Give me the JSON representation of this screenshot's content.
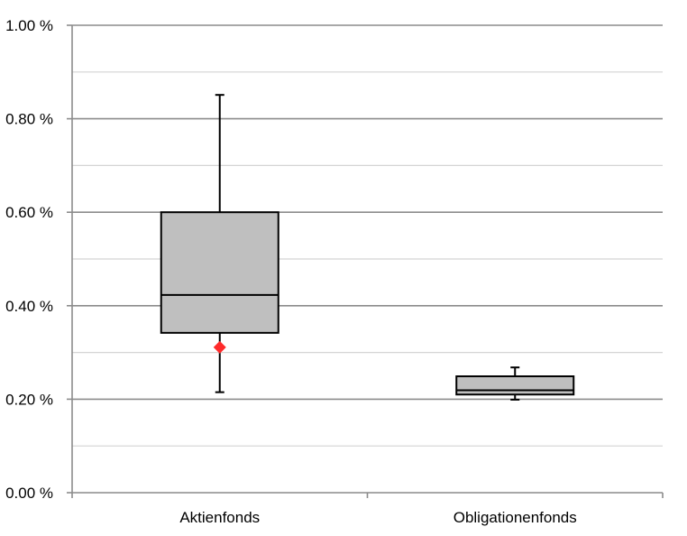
{
  "chart_data": {
    "type": "box",
    "categories": [
      "Aktienfonds",
      "Obligationenfonds"
    ],
    "boxes": [
      {
        "category": "Aktienfonds",
        "whisker_low": 0.215,
        "q1": 0.342,
        "median": 0.423,
        "q3": 0.6,
        "whisker_high": 0.851,
        "mean": 0.311
      },
      {
        "category": "Obligationenfonds",
        "whisker_low": 0.199,
        "q1": 0.21,
        "median": 0.219,
        "q3": 0.249,
        "whisker_high": 0.268
      }
    ],
    "y_ticks": [
      "1.00 %",
      "0.80 %",
      "0.60 %",
      "0.40 %",
      "0.20 %",
      "0.00 %"
    ],
    "y_tick_values": [
      1.0,
      0.8,
      0.6,
      0.4,
      0.2,
      0.0
    ],
    "ylim": [
      0,
      1.0
    ],
    "minor_gridlines": [
      0.1,
      0.3,
      0.5,
      0.7,
      0.9
    ],
    "grid": true,
    "title": "",
    "xlabel": "",
    "ylabel": "",
    "colors": {
      "box_fill": "#bfbfbf",
      "box_stroke": "#000000",
      "mean_marker": "#ff2b2b",
      "major_grid": "#8c8c8c",
      "minor_grid": "#d4d4d4",
      "axis": "#8c8c8c"
    }
  }
}
